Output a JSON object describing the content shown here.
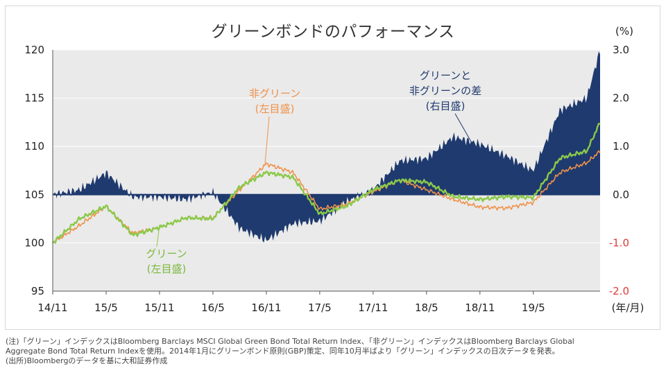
{
  "title": "グリーンボンドのパフォーマンス",
  "notes": {
    "line1": "(注)「グリーン」インデックスはBloomberg Barclays MSCI Global Green Bond Total Return Index、「非グリーン」インデックスはBloomberg Barclays Global",
    "line2": "Aggregate Bond Total Return Indexを使用。2014年1月にグリーンボンド原則(GBP)策定、同年10月半ばより「グリーン」インデックスの日次データを発表。",
    "line3": "(出所)Bloombergのデータを基に大和証券作成"
  },
  "chart_data": {
    "type": "area",
    "x_unit": "(年/月)",
    "y2_unit": "(%)",
    "x_ticks": [
      "14/11",
      "15/5",
      "15/11",
      "16/5",
      "16/11",
      "17/5",
      "17/11",
      "18/5",
      "18/11",
      "19/5"
    ],
    "y_ticks": [
      95,
      100,
      105,
      110,
      115,
      120
    ],
    "y2_ticks": [
      "3.0",
      "2.0",
      "1.0",
      "0.0",
      "-1.0",
      "-2.0"
    ],
    "ylim": [
      95,
      120
    ],
    "y2lim": [
      -2.0,
      3.0
    ],
    "grid": true,
    "colors": {
      "green": "#8bc94a",
      "nongreen": "#f0914a",
      "diff": "#1f3a6e",
      "neg_axis": "#e03a3a",
      "plot_bg": "#eaeaea"
    },
    "x": [
      0,
      3,
      6,
      9,
      12,
      15,
      18,
      21,
      24,
      27,
      30,
      33,
      36,
      39,
      42,
      45,
      48,
      51,
      54,
      57,
      60,
      61.5
    ],
    "series": [
      {
        "name": "グリーン",
        "axis": "left",
        "color": "#8bc94a",
        "values": [
          100.0,
          102.5,
          103.8,
          100.8,
          101.6,
          102.6,
          102.5,
          105.8,
          107.3,
          106.8,
          103.0,
          103.8,
          105.5,
          106.5,
          106.3,
          104.8,
          104.5,
          104.8,
          104.7,
          108.8,
          109.5,
          112.5
        ]
      },
      {
        "name": "非グリーン",
        "axis": "left",
        "color": "#f0914a",
        "values": [
          100.0,
          101.8,
          103.8,
          101.0,
          101.6,
          102.6,
          102.6,
          105.5,
          108.2,
          107.3,
          103.5,
          104.0,
          105.3,
          106.5,
          105.5,
          104.5,
          103.7,
          103.6,
          104.2,
          107.3,
          108.3,
          109.5
        ]
      },
      {
        "name": "グリーンと非グリーンの差",
        "axis": "right",
        "color": "#1f3a6e",
        "values": [
          0.0,
          0.1,
          0.45,
          -0.05,
          -0.05,
          -0.1,
          0.05,
          -0.7,
          -0.95,
          -0.6,
          -0.55,
          -0.15,
          0.1,
          0.7,
          0.75,
          1.2,
          1.05,
          0.8,
          0.5,
          1.75,
          2.0,
          3.0
        ]
      }
    ],
    "labels": {
      "nongreen": [
        "非グリーン",
        "(左目盛)"
      ],
      "green": [
        "グリーン",
        "(左目盛)"
      ],
      "diff": [
        "グリーンと",
        "非グリーンの差",
        "(右目盛)"
      ]
    }
  }
}
